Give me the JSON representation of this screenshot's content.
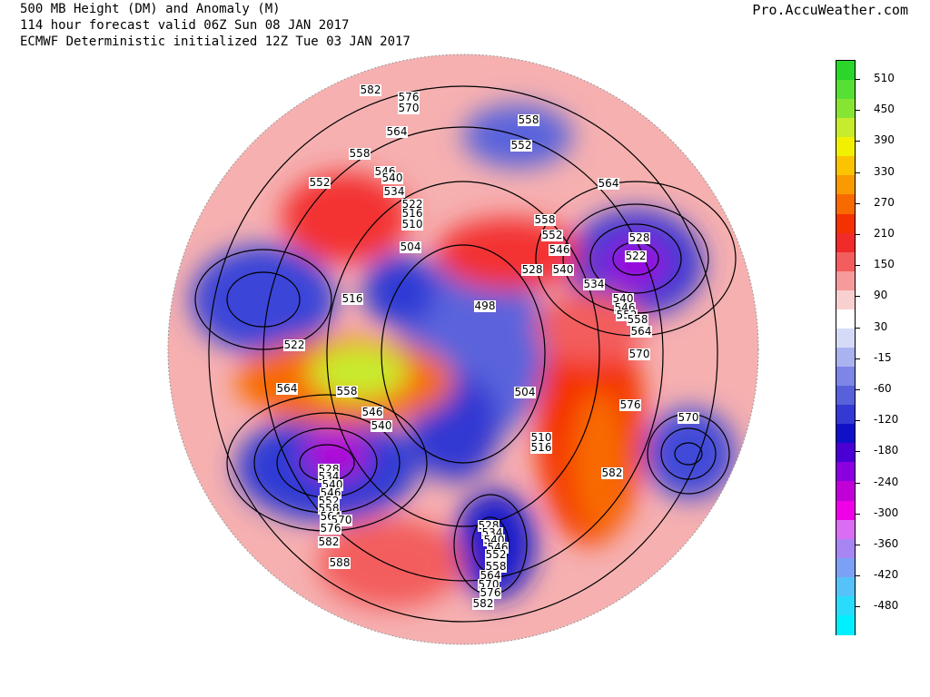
{
  "header": {
    "line1": "500 MB Height (DM) and Anomaly (M)",
    "line2": "114 hour forecast valid 06Z Sun 08 JAN 2017",
    "line3": "ECMWF Deterministic initialized 12Z Tue 03 JAN 2017",
    "credit": "Pro.AccuWeather.com"
  },
  "colorbar": {
    "labels": [
      "510",
      "450",
      "390",
      "330",
      "270",
      "210",
      "150",
      "90",
      "30",
      "-15",
      "-60",
      "-120",
      "-180",
      "-240",
      "-300",
      "-360",
      "-420",
      "-480"
    ],
    "colors": [
      "#2ad62a",
      "#55e033",
      "#86e533",
      "#c7ec2e",
      "#f1f000",
      "#fcc400",
      "#f99a00",
      "#f86a00",
      "#f43200",
      "#f12a2a",
      "#f35d5d",
      "#f69b9b",
      "#f9d0d0",
      "#ffffff",
      "#d5dbf7",
      "#a9b3ef",
      "#7d85e6",
      "#5861db",
      "#3339d2",
      "#1010c9",
      "#4a00d4",
      "#8a00e0",
      "#c000d6",
      "#f000e6",
      "#d96ef2",
      "#a785f2",
      "#7ba1f4",
      "#55c3f8",
      "#2bdcfa",
      "#00f0ff"
    ]
  },
  "contour_labels": [
    "582",
    "576",
    "570",
    "564",
    "558",
    "552",
    "546",
    "540",
    "534",
    "522",
    "516",
    "510",
    "504",
    "558",
    "552",
    "564",
    "528",
    "558",
    "552",
    "546",
    "540",
    "528",
    "522",
    "534",
    "540",
    "546",
    "552",
    "558",
    "564",
    "570",
    "498",
    "516",
    "522",
    "564",
    "558",
    "546",
    "540",
    "504",
    "510",
    "516",
    "576",
    "570",
    "582",
    "528",
    "534",
    "540",
    "546",
    "552",
    "558",
    "564",
    "570",
    "576",
    "582",
    "588",
    "528",
    "534",
    "540",
    "546",
    "552",
    "558",
    "564",
    "570",
    "576",
    "582"
  ]
}
